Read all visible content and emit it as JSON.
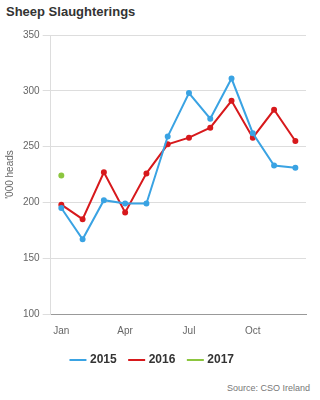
{
  "chart_data": {
    "type": "line",
    "title": "Sheep Slaughterings",
    "y_label": "'000 heads",
    "source": "Source: CSO Ireland",
    "categories": [
      "Jan",
      null,
      null,
      "Apr",
      null,
      null,
      "Jul",
      null,
      null,
      "Oct",
      null,
      null
    ],
    "series": [
      {
        "name": "2015",
        "color": "#3aa3e3",
        "marker": "circle",
        "values": [
          195,
          167,
          202,
          199,
          199,
          259,
          298,
          275,
          311,
          262,
          233,
          231
        ]
      },
      {
        "name": "2016",
        "color": "#d7191c",
        "marker": "circle",
        "values": [
          198,
          185,
          227,
          191,
          226,
          252,
          258,
          267,
          291,
          258,
          283,
          255
        ]
      },
      {
        "name": "2017",
        "color": "#8cc63f",
        "marker": "circle",
        "values": [
          224,
          null,
          null,
          null,
          null,
          null,
          null,
          null,
          null,
          null,
          null,
          null
        ]
      }
    ],
    "ylim": [
      100,
      350
    ],
    "yticks": [
      100,
      150,
      200,
      250,
      300,
      350
    ],
    "grid": true,
    "legend": "bottom"
  }
}
